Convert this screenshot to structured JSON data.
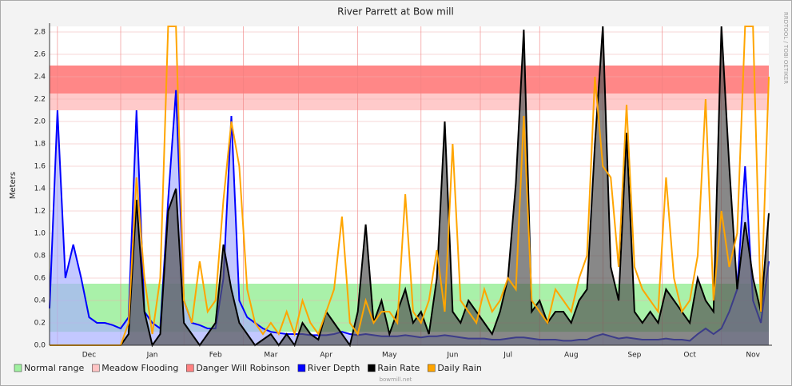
{
  "chart_data": {
    "type": "line",
    "title": "River Parrett at Bow mill",
    "y_label": "Meters",
    "side_note": "RRDTOOL / TOBI OETIKER",
    "footer": "bowmill.net",
    "ylim": [
      0,
      2.85
    ],
    "yticks": [
      {
        "value": 0,
        "label": "0.0"
      },
      0.2,
      0.4,
      0.6,
      0.8,
      {
        "value": 1,
        "label": "1.0"
      },
      1.2,
      1.4,
      1.6,
      1.8,
      {
        "value": 2,
        "label": "2.0"
      },
      2.2,
      2.4,
      2.6,
      2.8
    ],
    "grid": true,
    "legend": "bottom",
    "categories": [
      null,
      null,
      null,
      null,
      null,
      "Dec",
      null,
      null,
      null,
      null,
      null,
      null,
      null,
      "Jan",
      null,
      null,
      null,
      null,
      null,
      null,
      null,
      "Feb",
      null,
      null,
      null,
      null,
      null,
      null,
      "Mar",
      null,
      null,
      null,
      null,
      null,
      null,
      "Apr",
      null,
      null,
      null,
      null,
      null,
      null,
      null,
      "May",
      null,
      null,
      null,
      null,
      null,
      null,
      null,
      "Jun",
      null,
      null,
      null,
      null,
      null,
      null,
      "Jul",
      null,
      null,
      null,
      null,
      null,
      null,
      null,
      "Aug",
      null,
      null,
      null,
      null,
      null,
      null,
      null,
      "Sep",
      null,
      null,
      null,
      null,
      null,
      null,
      "Oct",
      null,
      null,
      null,
      null,
      null,
      null,
      null,
      "Nov",
      null,
      null
    ],
    "bands": [
      {
        "name": "Normal range",
        "color": "#a0f0a0",
        "range": [
          0.12,
          0.55
        ]
      },
      {
        "name": "Meadow Flooding",
        "color": "#ffc4c4",
        "range": [
          2.1,
          2.5
        ]
      },
      {
        "name": "Danger Will Robinson",
        "color": "#ff8080",
        "range": [
          2.25,
          2.5
        ]
      }
    ],
    "series": [
      {
        "name": "River Depth",
        "color": "#0000ff",
        "area": "#aab0ff",
        "values": [
          0.33,
          2.1,
          0.6,
          0.9,
          0.6,
          0.25,
          0.2,
          0.2,
          0.18,
          0.15,
          0.25,
          2.1,
          0.3,
          0.2,
          0.15,
          1.3,
          2.28,
          0.4,
          0.2,
          0.18,
          0.15,
          0.15,
          0.6,
          2.05,
          0.4,
          0.25,
          0.2,
          0.15,
          0.12,
          0.11,
          0.1,
          0.1,
          0.1,
          0.09,
          0.09,
          0.09,
          0.1,
          0.12,
          0.1,
          0.09,
          0.1,
          0.09,
          0.08,
          0.08,
          0.08,
          0.09,
          0.08,
          0.07,
          0.08,
          0.08,
          0.09,
          0.08,
          0.07,
          0.06,
          0.06,
          0.06,
          0.05,
          0.05,
          0.06,
          0.07,
          0.07,
          0.06,
          0.05,
          0.05,
          0.05,
          0.04,
          0.04,
          0.05,
          0.05,
          0.08,
          0.1,
          0.08,
          0.06,
          0.07,
          0.06,
          0.05,
          0.05,
          0.05,
          0.06,
          0.05,
          0.05,
          0.04,
          0.1,
          0.15,
          0.1,
          0.15,
          0.3,
          0.5,
          1.6,
          0.4,
          0.2,
          0.75
        ]
      },
      {
        "name": "Rain Rate",
        "color": "#000000",
        "area": "#555555",
        "values": [
          0,
          0,
          0,
          0,
          0,
          0,
          0,
          0,
          0,
          0,
          0.1,
          1.3,
          0.3,
          0,
          0.1,
          1.2,
          1.4,
          0.2,
          0.1,
          0,
          0.1,
          0.2,
          0.9,
          0.5,
          0.2,
          0.1,
          0,
          0.05,
          0.1,
          0,
          0.1,
          0,
          0.2,
          0.1,
          0.05,
          0.3,
          0.2,
          0.1,
          0,
          0.3,
          1.08,
          0.2,
          0.4,
          0.1,
          0.3,
          0.5,
          0.2,
          0.3,
          0.1,
          0.6,
          2.0,
          0.3,
          0.2,
          0.4,
          0.3,
          0.2,
          0.1,
          0.3,
          0.6,
          1.45,
          2.82,
          0.3,
          0.4,
          0.2,
          0.3,
          0.3,
          0.2,
          0.4,
          0.5,
          1.8,
          2.85,
          0.7,
          0.4,
          1.9,
          0.3,
          0.2,
          0.3,
          0.2,
          0.5,
          0.4,
          0.3,
          0.2,
          0.6,
          0.4,
          0.3,
          2.85,
          1.6,
          0.5,
          1.1,
          0.6,
          0.3,
          1.18
        ]
      },
      {
        "name": "Daily Rain",
        "color": "#ffa500",
        "values": [
          0,
          0,
          0,
          0,
          0,
          0,
          0,
          0,
          0,
          0,
          0.2,
          1.5,
          0.6,
          0.1,
          0.6,
          2.85,
          2.85,
          0.4,
          0.2,
          0.75,
          0.3,
          0.4,
          1.3,
          2.0,
          1.6,
          0.5,
          0.2,
          0.1,
          0.2,
          0.1,
          0.3,
          0.1,
          0.4,
          0.2,
          0.1,
          0.3,
          0.5,
          1.15,
          0.2,
          0.1,
          0.4,
          0.2,
          0.3,
          0.3,
          0.2,
          1.35,
          0.3,
          0.2,
          0.4,
          0.85,
          0.3,
          1.8,
          0.4,
          0.3,
          0.2,
          0.5,
          0.3,
          0.4,
          0.6,
          0.5,
          2.05,
          0.4,
          0.3,
          0.2,
          0.5,
          0.4,
          0.3,
          0.6,
          0.8,
          2.4,
          1.6,
          1.5,
          0.7,
          2.15,
          0.7,
          0.5,
          0.4,
          0.3,
          1.5,
          0.6,
          0.3,
          0.4,
          0.8,
          2.2,
          0.4,
          1.2,
          0.7,
          1.0,
          2.85,
          2.85,
          0.3,
          2.4
        ]
      }
    ]
  }
}
